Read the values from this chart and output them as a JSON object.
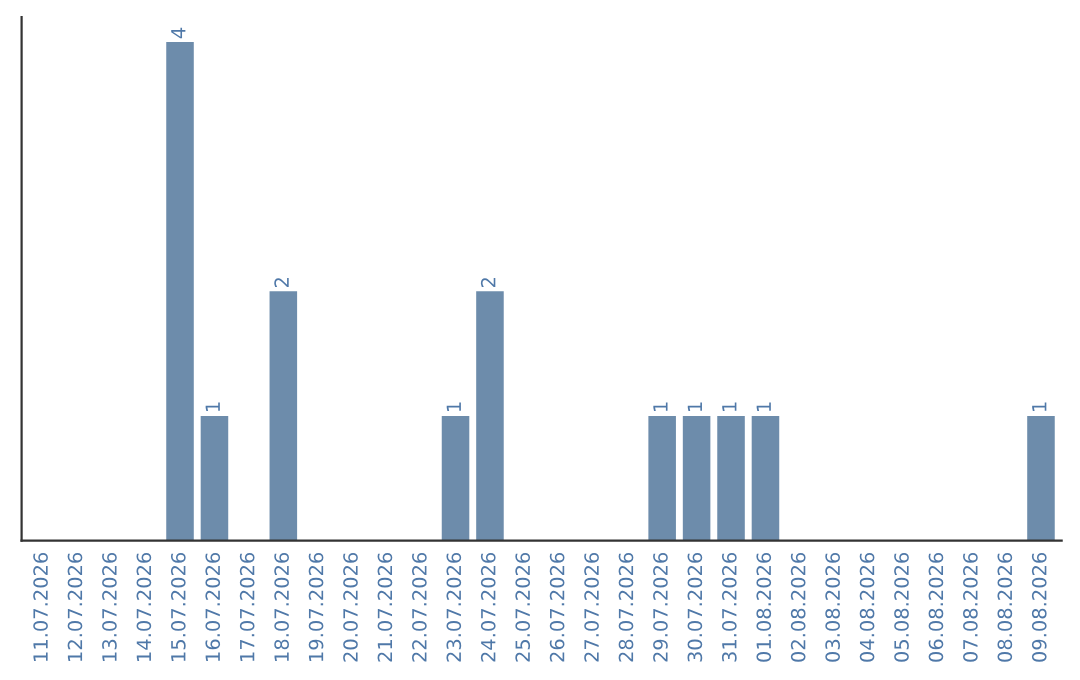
{
  "chart_data": {
    "type": "bar",
    "categories": [
      "11.07.2026",
      "12.07.2026",
      "13.07.2026",
      "14.07.2026",
      "15.07.2026",
      "16.07.2026",
      "17.07.2026",
      "18.07.2026",
      "19.07.2026",
      "20.07.2026",
      "21.07.2026",
      "22.07.2026",
      "23.07.2026",
      "24.07.2026",
      "25.07.2026",
      "26.07.2026",
      "27.07.2026",
      "28.07.2026",
      "29.07.2026",
      "30.07.2026",
      "31.07.2026",
      "01.08.2026",
      "02.08.2026",
      "03.08.2026",
      "04.08.2026",
      "05.08.2026",
      "06.08.2026",
      "07.08.2026",
      "08.08.2026",
      "09.08.2026"
    ],
    "values": [
      0,
      0,
      0,
      0,
      4,
      1,
      0,
      2,
      0,
      0,
      0,
      0,
      1,
      2,
      0,
      0,
      0,
      0,
      1,
      1,
      1,
      1,
      0,
      0,
      0,
      0,
      0,
      0,
      0,
      1
    ],
    "value_labels": [
      null,
      null,
      null,
      null,
      "4",
      "1",
      null,
      "2",
      null,
      null,
      null,
      null,
      "1",
      "2",
      null,
      null,
      null,
      null,
      "1",
      "1",
      "1",
      "1",
      null,
      null,
      null,
      null,
      null,
      null,
      null,
      "1"
    ],
    "color": "#6d8cab",
    "tick_labels": "x",
    "grid": false,
    "legend": false
  }
}
